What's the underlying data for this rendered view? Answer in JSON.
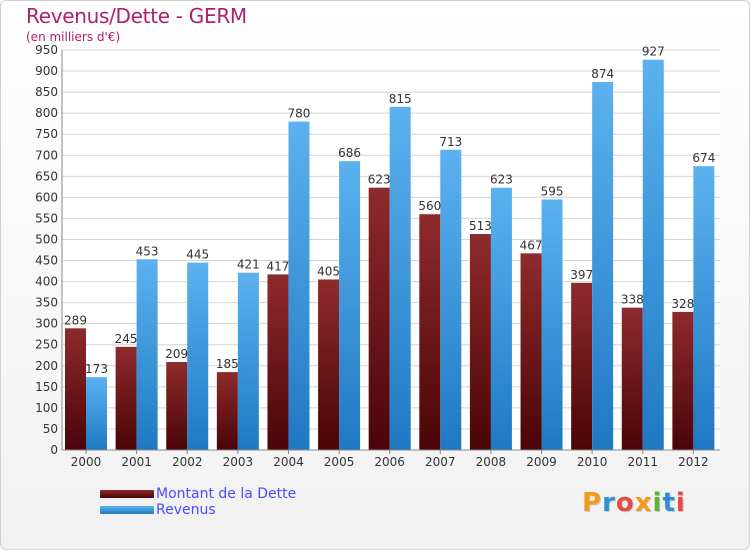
{
  "title": "Revenus/Dette - GERM",
  "subtitle": "(en milliers d'€)",
  "colors": {
    "debt": "#7a1418",
    "revenue": "#3b98e0",
    "title": "#b0206a",
    "legend_text": "#4a4aff"
  },
  "logo": {
    "letters": [
      "P",
      "r",
      "o",
      "x",
      "i",
      "t",
      "i"
    ],
    "colors": [
      "#f39a1e",
      "#2d8fd6",
      "#e94b3c",
      "#f39a1e",
      "#5bb534",
      "#2d8fd6",
      "#e94b3c"
    ]
  },
  "chart_data": {
    "type": "bar",
    "categories": [
      "2000",
      "2001",
      "2002",
      "2003",
      "2004",
      "2005",
      "2006",
      "2007",
      "2008",
      "2009",
      "2010",
      "2011",
      "2012"
    ],
    "series": [
      {
        "name": "Montant de la Dette",
        "values": [
          289,
          245,
          209,
          185,
          417,
          405,
          623,
          560,
          513,
          467,
          397,
          338,
          328
        ]
      },
      {
        "name": "Revenus",
        "values": [
          173,
          453,
          445,
          421,
          780,
          686,
          815,
          713,
          623,
          595,
          874,
          927,
          674
        ]
      }
    ],
    "ylim": [
      0,
      950
    ],
    "yticks": [
      0,
      50,
      100,
      150,
      200,
      250,
      300,
      350,
      400,
      450,
      500,
      550,
      600,
      650,
      700,
      750,
      800,
      850,
      900,
      950
    ],
    "grid": true,
    "legend_position": "bottom-left"
  }
}
